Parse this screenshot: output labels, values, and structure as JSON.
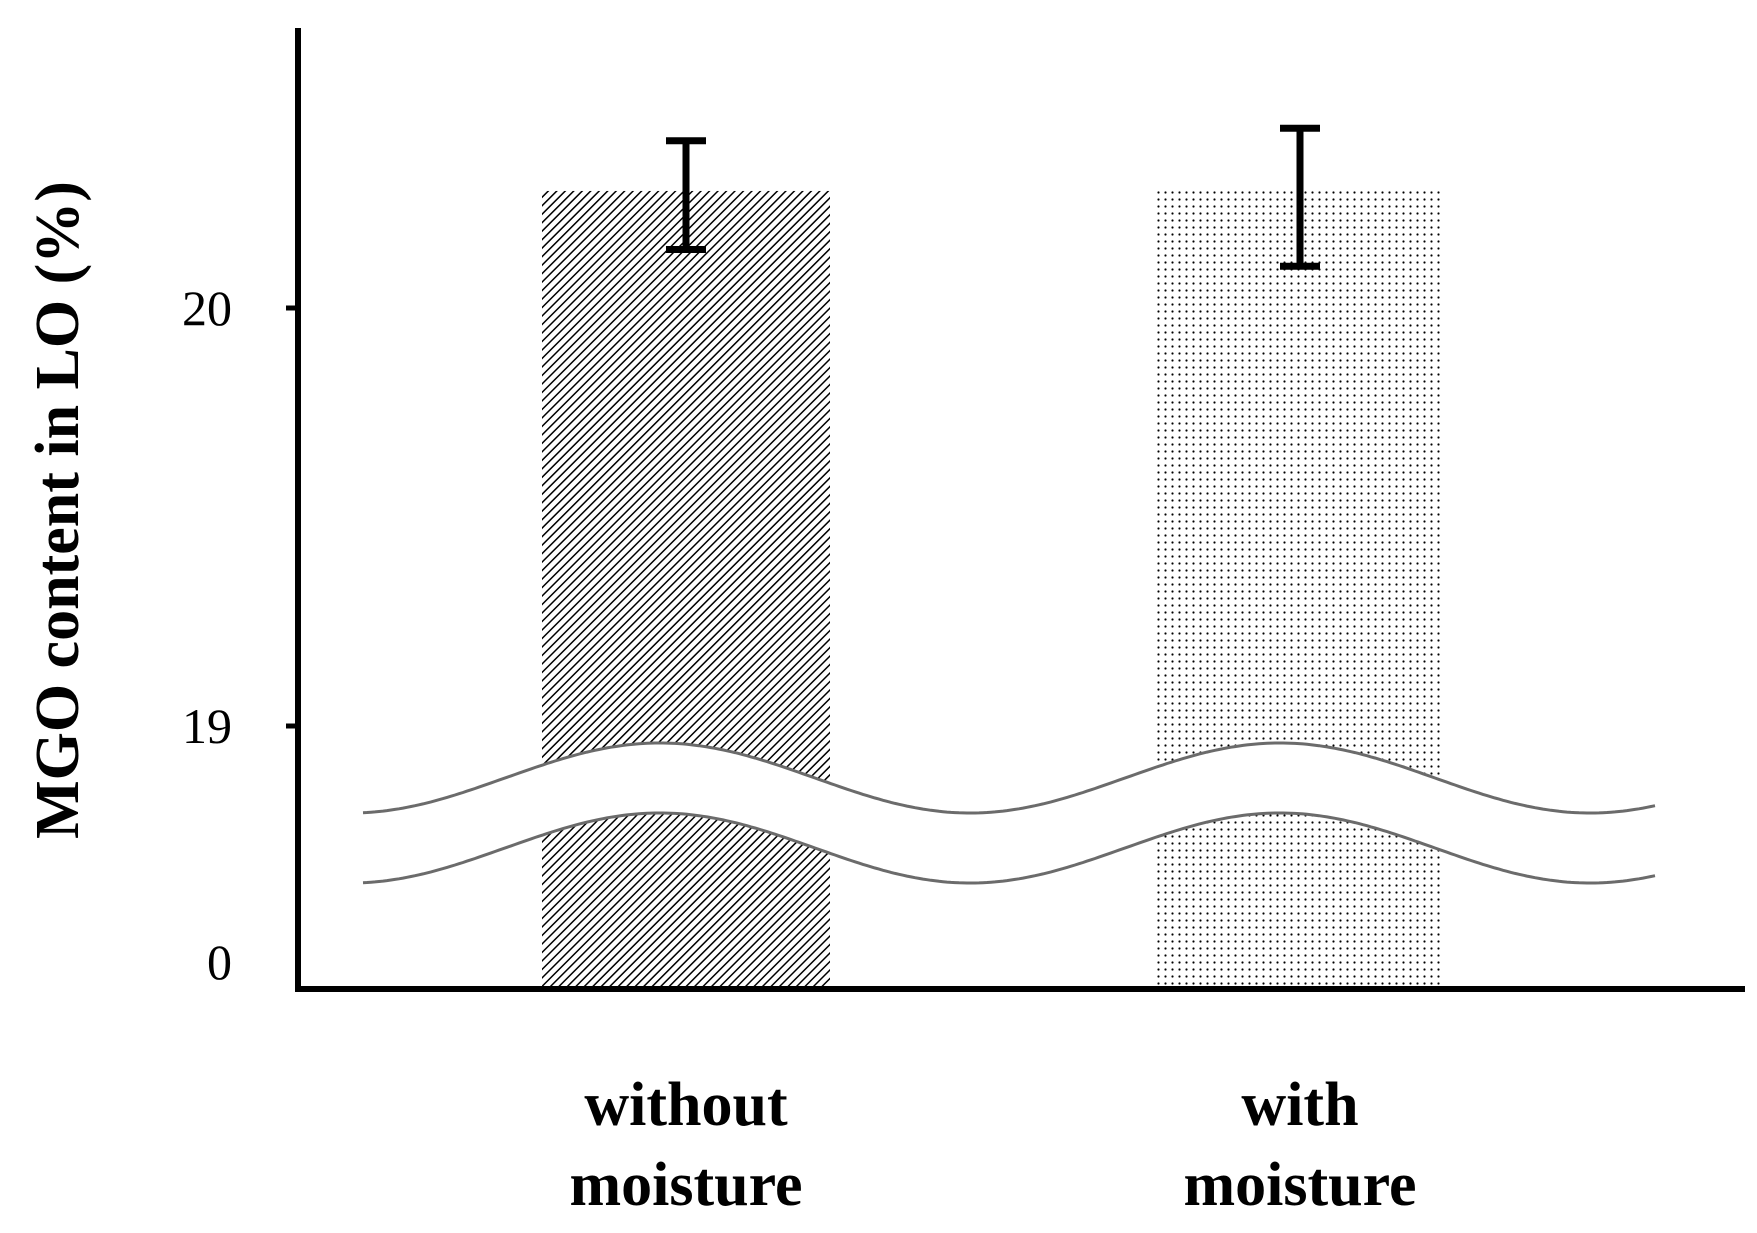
{
  "chart_data": {
    "type": "bar",
    "title": "",
    "xlabel": "",
    "ylabel": "MGO content in LO (%)",
    "axis_break": {
      "from": 0,
      "to": 19
    },
    "yticks": [
      {
        "value": 0,
        "label": "0"
      },
      {
        "value": 19,
        "label": "19"
      },
      {
        "value": 20,
        "label": "20"
      }
    ],
    "categories": [
      {
        "lines": [
          "without",
          "moisture"
        ],
        "pattern": "diagonal-hatch"
      },
      {
        "lines": [
          "with",
          "moisture"
        ],
        "pattern": "dots"
      }
    ],
    "values": [
      20.28,
      20.28
    ],
    "error_upper": [
      20.4,
      20.43
    ],
    "error_lower": [
      20.14,
      20.1
    ],
    "ylim": [
      0,
      20.6
    ],
    "grid": false,
    "legend": "none"
  }
}
